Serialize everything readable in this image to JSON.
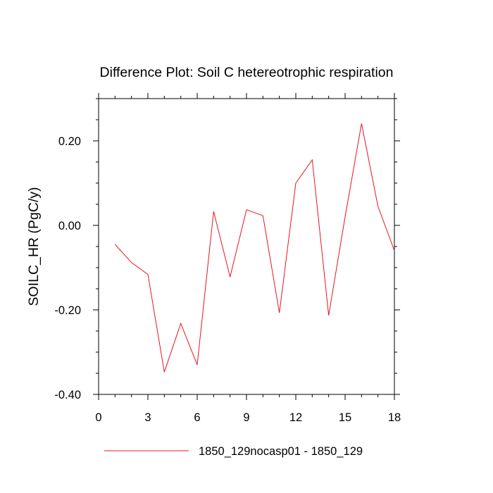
{
  "chart_data": {
    "type": "line",
    "title": "Difference Plot: Soil C hetereotrophic respiration",
    "xlabel": "",
    "ylabel": "SOILC_HR  (PgC/y)",
    "xlim": [
      0,
      18
    ],
    "ylim": [
      -0.4,
      0.3
    ],
    "x_ticks": [
      0,
      3,
      6,
      9,
      12,
      15,
      18
    ],
    "x_tick_labels": [
      "0",
      "3",
      "6",
      "9",
      "12",
      "15",
      "18"
    ],
    "y_ticks": [
      -0.4,
      -0.2,
      0.0,
      0.2
    ],
    "y_tick_labels": [
      "-0.40",
      "-0.20",
      "0.00",
      "0.20"
    ],
    "grid": false,
    "legend_position": "bottom",
    "series": [
      {
        "name": "1850_129nocasp01 - 1850_129",
        "color": "#e8141c",
        "x": [
          1,
          2,
          3,
          4,
          5,
          6,
          7,
          8,
          9,
          10,
          11,
          12,
          13,
          14,
          15,
          16,
          17,
          18
        ],
        "values": [
          -0.045,
          -0.088,
          -0.116,
          -0.347,
          -0.232,
          -0.33,
          0.033,
          -0.122,
          0.037,
          0.023,
          -0.207,
          0.1,
          0.155,
          -0.213,
          0.02,
          0.241,
          0.045,
          -0.06
        ]
      }
    ]
  }
}
